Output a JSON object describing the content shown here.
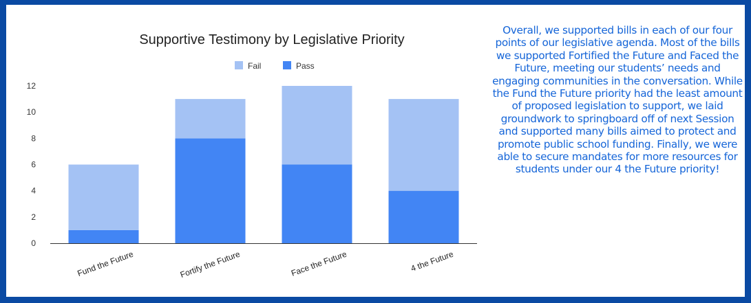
{
  "colors": {
    "border": "#0a4aa3",
    "fail": "#a4c2f4",
    "pass": "#4285f4",
    "summary_text": "#1565d8",
    "axis": "#333333",
    "grid": "#dcdcdc"
  },
  "summary": {
    "text": "Overall, we supported bills in each of our four points of our legislative agenda. Most of the bills we supported Fortified the Future and Faced the Future, meeting our students’ needs and engaging communities in the conversation. While the Fund the Future priority had the least amount of proposed legislation to support, we laid groundwork to springboard off of next Session and supported many bills aimed to protect and promote public school funding. Finally, we were able to secure mandates for more resources for students under our 4 the Future priority!"
  },
  "chart_data": {
    "type": "bar",
    "stacked": true,
    "title": "Supportive Testimony by Legislative Priority",
    "categories": [
      "Fund the Future",
      "Fortify the Future",
      "Face the Future",
      "4 the Future"
    ],
    "series": [
      {
        "name": "Pass",
        "values": [
          1,
          8,
          6,
          4
        ]
      },
      {
        "name": "Fail",
        "values": [
          5,
          3,
          6,
          7
        ]
      }
    ],
    "legend_order": [
      "Fail",
      "Pass"
    ],
    "legend_placement": "top",
    "ylim": [
      0,
      12
    ],
    "yticks": [
      "0",
      "2",
      "4",
      "6",
      "8",
      "10",
      "12"
    ],
    "grid": false
  }
}
